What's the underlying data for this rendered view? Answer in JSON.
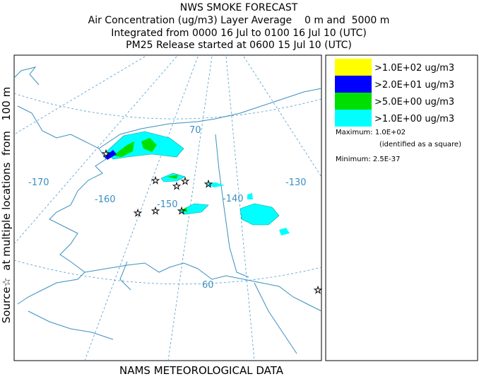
{
  "header": {
    "title": "NWS SMOKE FORECAST",
    "lines": [
      "Air Concentration (ug/m3) Layer Average    0 m and  5000 m",
      "Integrated from 0000 16 Jul to 0100 16 Jul 10 (UTC)",
      "PM25 Release started at 0600 15 Jul 10 (UTC)"
    ]
  },
  "side_label": "Source☆  at multiple locations  from   100 m",
  "footer": "NAMS METEOROLOGICAL DATA",
  "map_labels": {
    "lat_70": "70",
    "lat_60": "60",
    "lon_170": "-170",
    "lon_160": "-160",
    "lon_150": "-150",
    "lon_140": "-140",
    "lon_130": "-130"
  },
  "legend": {
    "items": [
      {
        "label": ">1.0E+02 ug/m3",
        "color": "#ffff00"
      },
      {
        "label": ">2.0E+01 ug/m3",
        "color": "#0000ff"
      },
      {
        "label": ">5.0E+00 ug/m3",
        "color": "#00e000"
      },
      {
        "label": ">1.0E+00 ug/m3",
        "color": "#00ffff"
      }
    ],
    "maximum": "Maximum: 1.0E+02",
    "max_note": "(identified as a square)",
    "minimum": "Minimum: 2.5E-37"
  }
}
